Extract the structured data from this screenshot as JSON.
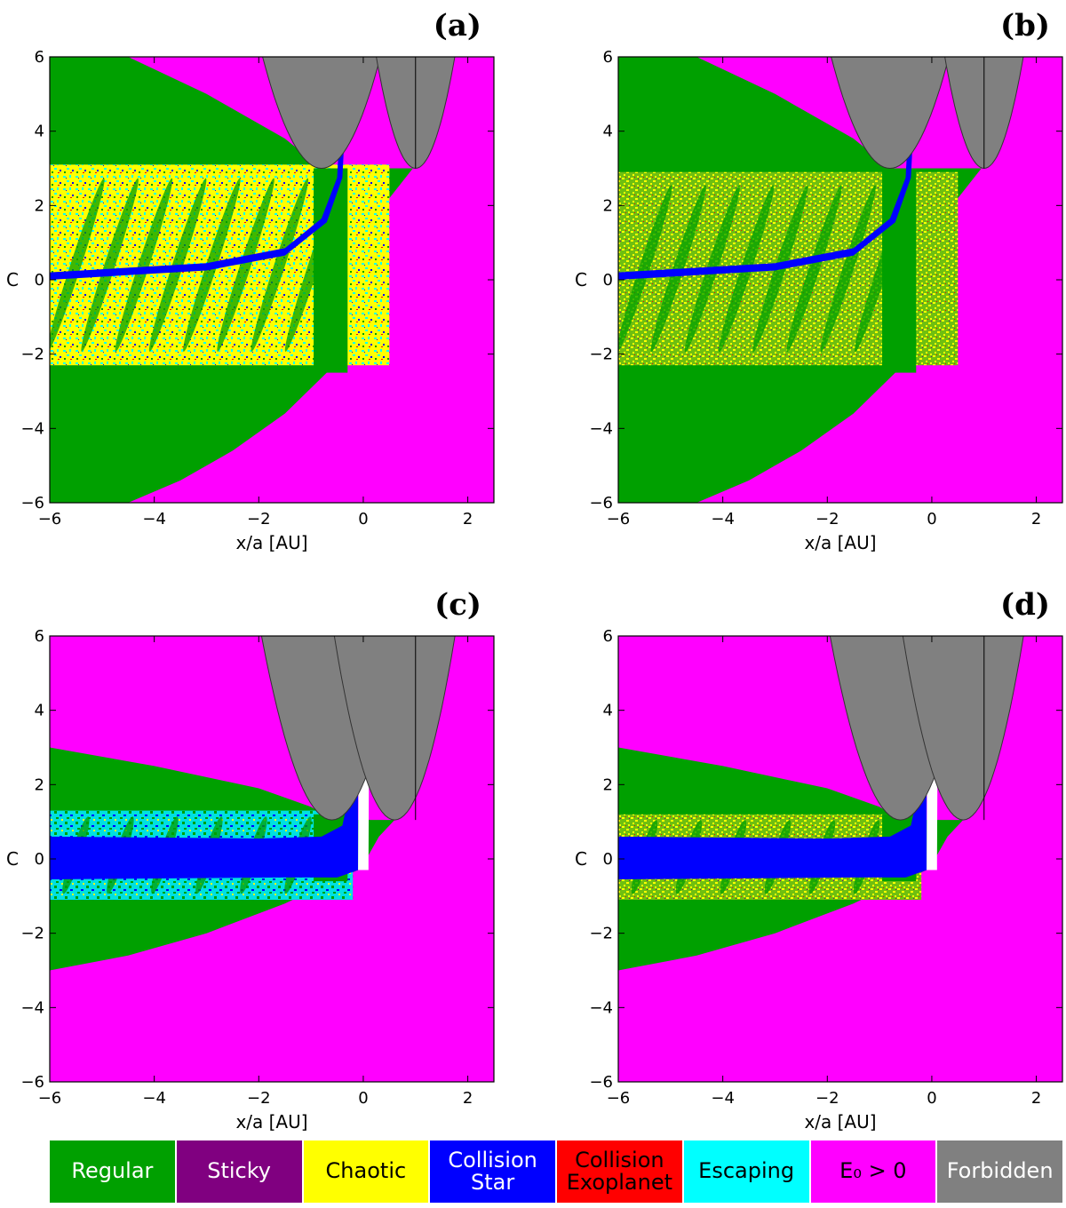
{
  "chart_data": [
    {
      "type": "heatmap",
      "panel_label": "(a)",
      "xlabel": "x/a [AU]",
      "ylabel": "C",
      "xlim": [
        -6,
        2.5
      ],
      "ylim": [
        -6,
        6
      ],
      "xticks": [
        -6,
        -4,
        -2,
        0,
        2
      ],
      "yticks": [
        -6,
        -4,
        -2,
        0,
        2,
        4,
        6
      ],
      "forbidden_minima": [
        -0.8,
        1.0
      ],
      "forbidden_min_C": 3.0,
      "collision_band_C": 0.35,
      "mixed_band": [
        -2.3,
        3.1
      ],
      "mixed_pattern": "yellow-cyan-blue"
    },
    {
      "type": "heatmap",
      "panel_label": "(b)",
      "xlabel": "x/a [AU]",
      "ylabel": "C",
      "xlim": [
        -6,
        2.5
      ],
      "ylim": [
        -6,
        6
      ],
      "xticks": [
        -6,
        -4,
        -2,
        0,
        2
      ],
      "yticks": [
        -6,
        -4,
        -2,
        0,
        2,
        4,
        6
      ],
      "forbidden_minima": [
        -0.8,
        1.0
      ],
      "forbidden_min_C": 3.0,
      "collision_band_C": 0.35,
      "mixed_band": [
        -2.3,
        2.9
      ],
      "mixed_pattern": "yellow-green"
    },
    {
      "type": "heatmap",
      "panel_label": "(c)",
      "xlabel": "x/a [AU]",
      "ylabel": "C",
      "xlim": [
        -6,
        2.5
      ],
      "ylim": [
        -6,
        6
      ],
      "xticks": [
        -6,
        -4,
        -2,
        0,
        2
      ],
      "yticks": [
        -6,
        -4,
        -2,
        0,
        2,
        4,
        6
      ],
      "forbidden_minima": [
        -0.6,
        0.6
      ],
      "forbidden_min_C": 1.05,
      "collision_band_C": 0.0,
      "mixed_band": [
        -1.1,
        1.3
      ],
      "mixed_pattern": "cyan-green"
    },
    {
      "type": "heatmap",
      "panel_label": "(d)",
      "xlabel": "x/a [AU]",
      "ylabel": "C",
      "xlim": [
        -6,
        2.5
      ],
      "ylim": [
        -6,
        6
      ],
      "xticks": [
        -6,
        -4,
        -2,
        0,
        2
      ],
      "yticks": [
        -6,
        -4,
        -2,
        0,
        2,
        4,
        6
      ],
      "forbidden_minima": [
        -0.6,
        0.6
      ],
      "forbidden_min_C": 1.05,
      "collision_band_C": 0.0,
      "mixed_band": [
        -1.1,
        1.2
      ],
      "mixed_pattern": "yellow-green"
    }
  ],
  "legend": [
    {
      "label": "Regular",
      "color": "#00a000",
      "text_color": "#ffffff"
    },
    {
      "label": "Sticky",
      "color": "#800080",
      "text_color": "#ffffff"
    },
    {
      "label": "Chaotic",
      "color": "#ffff00",
      "text_color": "#000000"
    },
    {
      "label": "Collision\nStar",
      "color": "#0000ff",
      "text_color": "#ffffff"
    },
    {
      "label": "Collision\nExoplanet",
      "color": "#ff0000",
      "text_color": "#000000"
    },
    {
      "label": "Escaping",
      "color": "#00ffff",
      "text_color": "#000000"
    },
    {
      "label": "E₀ > 0",
      "color": "#ff00ff",
      "text_color": "#000000"
    },
    {
      "label": "Forbidden",
      "color": "#808080",
      "text_color": "#ffffff"
    }
  ],
  "colors": {
    "regular": "#00a000",
    "sticky": "#800080",
    "chaotic": "#ffff00",
    "collision_star": "#0000ff",
    "collision_exoplanet": "#ff0000",
    "escaping": "#00ffff",
    "unbound": "#ff00ff",
    "forbidden": "#808080"
  }
}
